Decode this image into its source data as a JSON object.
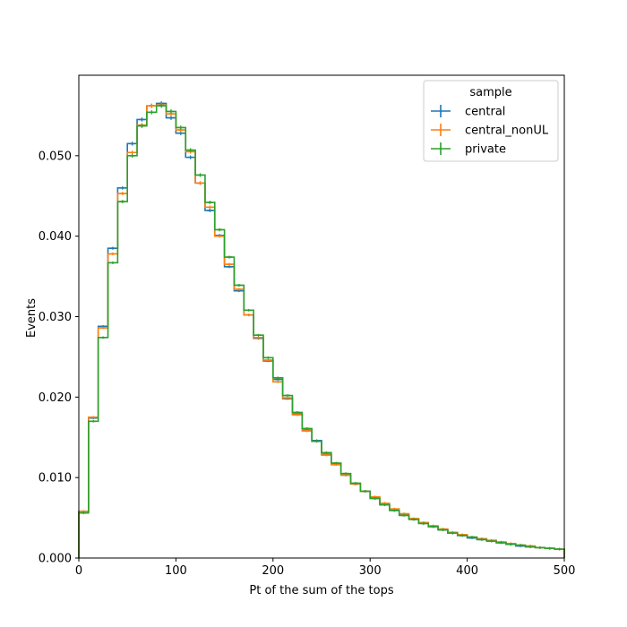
{
  "chart_data": {
    "type": "line",
    "title": "",
    "xlabel": "Pt of the sum of the tops",
    "ylabel": "Events",
    "xlim": [
      0,
      500
    ],
    "ylim": [
      0,
      0.06
    ],
    "xticks": [
      0,
      100,
      200,
      300,
      400,
      500
    ],
    "xtick_labels": [
      "0",
      "100",
      "200",
      "300",
      "400",
      "500"
    ],
    "yticks": [
      0,
      0.01,
      0.02,
      0.03,
      0.04,
      0.05
    ],
    "ytick_labels": [
      "0.000",
      "0.010",
      "0.020",
      "0.030",
      "0.040",
      "0.050"
    ],
    "grid": false,
    "legend": {
      "title": "sample",
      "placement": "top-right"
    },
    "bin_edges": [
      0,
      10,
      20,
      30,
      40,
      50,
      60,
      70,
      80,
      90,
      100,
      110,
      120,
      130,
      140,
      150,
      160,
      170,
      180,
      190,
      200,
      210,
      220,
      230,
      240,
      250,
      260,
      270,
      280,
      290,
      300,
      310,
      320,
      330,
      340,
      350,
      360,
      370,
      380,
      390,
      400,
      410,
      420,
      430,
      440,
      450,
      460,
      470,
      480,
      490,
      500
    ],
    "series": [
      {
        "name": "central",
        "color": "#1f77b4",
        "values": [
          0.0058,
          0.0174,
          0.0288,
          0.0385,
          0.046,
          0.0515,
          0.0545,
          0.0562,
          0.0565,
          0.0547,
          0.0528,
          0.0498,
          0.0466,
          0.0432,
          0.0401,
          0.0362,
          0.0332,
          0.0302,
          0.0273,
          0.0245,
          0.0222,
          0.0198,
          0.0179,
          0.0159,
          0.0146,
          0.0129,
          0.0117,
          0.0103,
          0.0092,
          0.0083,
          0.0075,
          0.0067,
          0.006,
          0.0054,
          0.0048,
          0.0043,
          0.0039,
          0.0035,
          0.0031,
          0.0028,
          0.0025,
          0.0023,
          0.0021,
          0.0019,
          0.0017,
          0.0015,
          0.0014,
          0.0013,
          0.0012,
          0.0011
        ]
      },
      {
        "name": "central_nonUL",
        "color": "#ff7f0e",
        "values": [
          0.0058,
          0.0175,
          0.0286,
          0.0378,
          0.0453,
          0.0504,
          0.0538,
          0.0562,
          0.0563,
          0.0552,
          0.0532,
          0.0505,
          0.0466,
          0.0436,
          0.04,
          0.0365,
          0.0334,
          0.0302,
          0.0274,
          0.0246,
          0.0219,
          0.0199,
          0.0178,
          0.0158,
          0.0145,
          0.0128,
          0.0116,
          0.0103,
          0.0092,
          0.0083,
          0.0076,
          0.0068,
          0.0061,
          0.0055,
          0.0049,
          0.0044,
          0.004,
          0.0036,
          0.0032,
          0.0029,
          0.0026,
          0.0024,
          0.0022,
          0.002,
          0.0018,
          0.0016,
          0.0015,
          0.0013,
          0.0012,
          0.0011
        ]
      },
      {
        "name": "private",
        "color": "#2ca02c",
        "values": [
          0.0056,
          0.017,
          0.0274,
          0.0367,
          0.0443,
          0.05,
          0.0537,
          0.0554,
          0.0562,
          0.0555,
          0.0535,
          0.0507,
          0.0476,
          0.0442,
          0.0408,
          0.0374,
          0.0339,
          0.0308,
          0.0277,
          0.0249,
          0.0224,
          0.0202,
          0.0181,
          0.0161,
          0.0145,
          0.0131,
          0.0118,
          0.0105,
          0.0093,
          0.0083,
          0.0074,
          0.0066,
          0.0059,
          0.0053,
          0.0048,
          0.0043,
          0.0039,
          0.0035,
          0.0031,
          0.0028,
          0.0026,
          0.0023,
          0.0021,
          0.0019,
          0.0017,
          0.0016,
          0.0014,
          0.0013,
          0.0012,
          0.0011
        ]
      }
    ]
  }
}
